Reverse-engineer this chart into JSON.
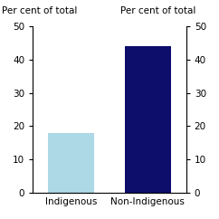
{
  "categories": [
    "Indigenous",
    "Non-Indigenous"
  ],
  "values": [
    18.0,
    44.0
  ],
  "bar_colors": [
    "#add8e6",
    "#0d0d6b"
  ],
  "ylim": [
    0,
    50
  ],
  "yticks": [
    0,
    10,
    20,
    30,
    40,
    50
  ],
  "ylabel_left": "Per cent of total",
  "ylabel_right": "Per cent of total",
  "background_color": "#ffffff",
  "tick_fontsize": 7.5,
  "label_fontsize": 7.5,
  "bar_width": 0.6
}
